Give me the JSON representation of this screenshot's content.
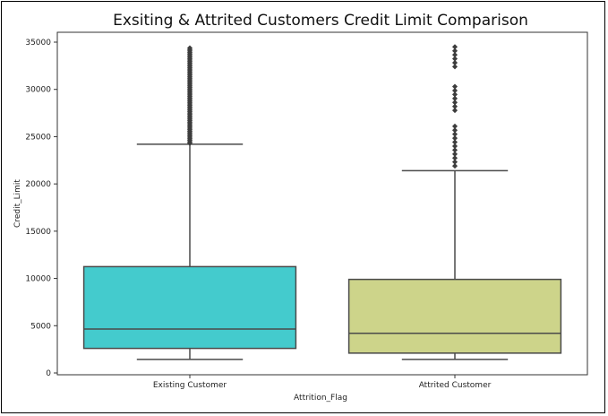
{
  "chart_data": {
    "type": "box",
    "title": "Exsiting & Attrited Customers Credit Limit Comparison",
    "xlabel": "Attrition_Flag",
    "ylabel": "Credit_Limit",
    "ylim": [
      0,
      36000
    ],
    "yticks": [
      "0",
      "5000",
      "10000",
      "15000",
      "20000",
      "25000",
      "30000",
      "35000"
    ],
    "categories": [
      "Existing Customer",
      "Attrited Customer"
    ],
    "boxes": [
      {
        "name": "Existing Customer",
        "color": "#44cbcd",
        "whisker_low": 1440,
        "q1": 2600,
        "median": 4650,
        "q3": 11250,
        "whisker_high": 24200,
        "outlier_range": [
          24300,
          34516
        ]
      },
      {
        "name": "Attrited Customer",
        "color": "#cdd48a",
        "whisker_low": 1440,
        "q1": 2100,
        "median": 4200,
        "q3": 9900,
        "whisker_high": 21400,
        "outlier_range": [
          21900,
          34516
        ]
      }
    ],
    "grid": false,
    "legend": "none"
  }
}
